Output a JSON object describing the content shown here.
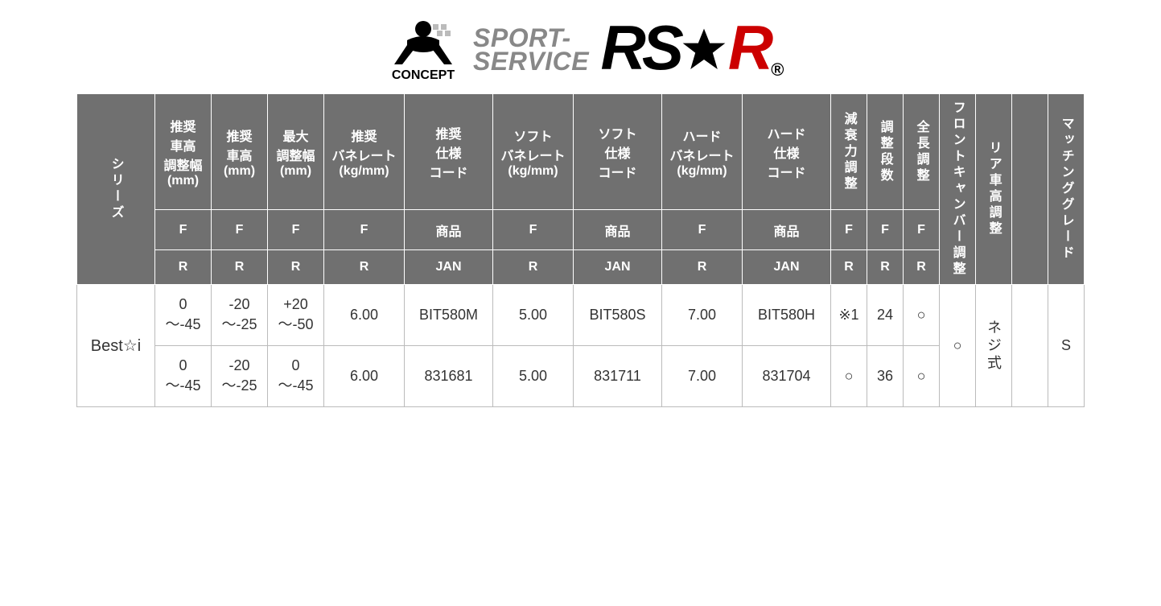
{
  "logo": {
    "concept_label": "CONCEPT",
    "sport_line1": "SPORT-",
    "sport_line2": "SERVICE",
    "rs": "RS",
    "r": "R",
    "reg": "®"
  },
  "header": {
    "series": "シリーズ",
    "cols": [
      "推奨\n車高\n調整幅\n(mm)",
      "推奨\n車高\n(mm)",
      "最大\n調整幅\n(mm)",
      "推奨\nバネレート\n(kg/mm)",
      "推奨\n仕様\nコード",
      "ソフト\nバネレート\n(kg/mm)",
      "ソフト\n仕様\nコード",
      "ハード\nバネレート\n(kg/mm)",
      "ハード\n仕様\nコード",
      "減衰力調整",
      "調整段数",
      "全長調整"
    ],
    "fr_row": [
      "F",
      "F",
      "F",
      "F",
      "商品",
      "F",
      "商品",
      "F",
      "商品",
      "F",
      "F",
      "F"
    ],
    "jan_row": [
      "R",
      "R",
      "R",
      "R",
      "JAN",
      "R",
      "JAN",
      "R",
      "JAN",
      "R",
      "R",
      "R"
    ],
    "front_camber": "フロントキャンバー調整",
    "rear_height": "リア車高調整",
    "empty": "",
    "matching": "マッチンググレード"
  },
  "rows": {
    "series": "Best☆i",
    "front_camber": "○",
    "rear_height": "ネジ式",
    "matching": "S",
    "r1": [
      "0\n～-45",
      "-20\n～-25",
      "+20\n～-50",
      "6.00",
      "BIT580M",
      "5.00",
      "BIT580S",
      "7.00",
      "BIT580H",
      "※1",
      "24",
      "○"
    ],
    "r2": [
      "0\n～-45",
      "-20\n～-25",
      "0\n～-45",
      "6.00",
      "831681",
      "5.00",
      "831711",
      "7.00",
      "831704",
      "○",
      "36",
      "○"
    ]
  },
  "style": {
    "header_bg": "#707070",
    "header_fg": "#ffffff",
    "body_border": "#bbbbbb",
    "red": "#cc0000",
    "grey_text": "#888888"
  }
}
